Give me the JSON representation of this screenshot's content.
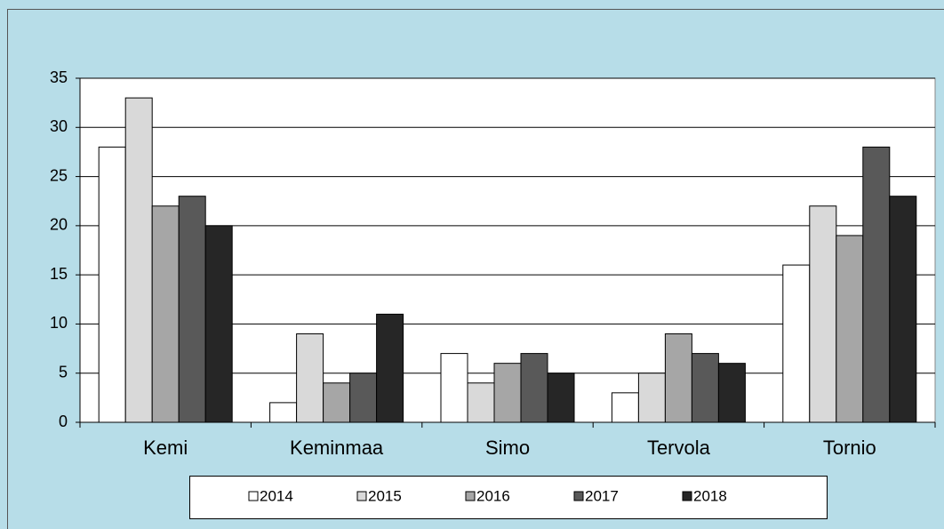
{
  "chart_data": {
    "type": "bar",
    "categories": [
      "Kemi",
      "Keminmaa",
      "Simo",
      "Tervola",
      "Tornio"
    ],
    "series": [
      {
        "name": "2014",
        "color": "#ffffff",
        "values": [
          28,
          2,
          7,
          3,
          16
        ]
      },
      {
        "name": "2015",
        "color": "#d9d9d9",
        "values": [
          33,
          9,
          4,
          5,
          22
        ]
      },
      {
        "name": "2016",
        "color": "#a6a6a6",
        "values": [
          22,
          4,
          6,
          9,
          19
        ]
      },
      {
        "name": "2017",
        "color": "#595959",
        "values": [
          23,
          5,
          7,
          7,
          28
        ]
      },
      {
        "name": "2018",
        "color": "#262626",
        "values": [
          20,
          11,
          5,
          6,
          23
        ]
      }
    ],
    "ylim": [
      0,
      35
    ],
    "yticks": [
      0,
      5,
      10,
      15,
      20,
      25,
      30,
      35
    ],
    "grid": true,
    "legend": "bottom"
  }
}
